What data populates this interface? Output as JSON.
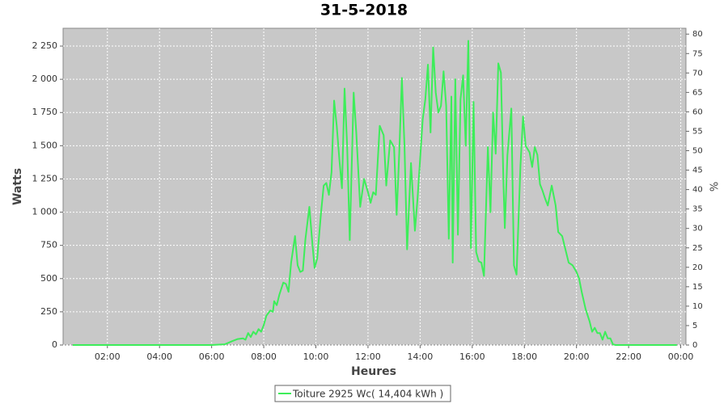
{
  "chart_data": {
    "type": "line",
    "title": "31-5-2018",
    "xlabel": "Heures",
    "ylabel": "Watts",
    "y2label": "%",
    "series": [
      {
        "name": "Toiture 2925 Wc( 14,404 kWh )",
        "color": "#3ded5a",
        "x": [
          0.67,
          6.0,
          6.5,
          6.8,
          7.0,
          7.2,
          7.3,
          7.4,
          7.5,
          7.6,
          7.7,
          7.8,
          7.9,
          8.0,
          8.1,
          8.25,
          8.35,
          8.4,
          8.5,
          8.6,
          8.75,
          8.85,
          8.95,
          9.05,
          9.2,
          9.3,
          9.4,
          9.5,
          9.6,
          9.75,
          9.85,
          9.95,
          10.05,
          10.2,
          10.3,
          10.4,
          10.5,
          10.6,
          10.7,
          10.8,
          10.9,
          11.0,
          11.1,
          11.2,
          11.3,
          11.45,
          11.55,
          11.7,
          11.85,
          12.0,
          12.1,
          12.2,
          12.3,
          12.45,
          12.6,
          12.7,
          12.85,
          13.0,
          13.1,
          13.2,
          13.3,
          13.4,
          13.5,
          13.65,
          13.8,
          13.9,
          14.0,
          14.1,
          14.2,
          14.3,
          14.4,
          14.5,
          14.6,
          14.7,
          14.8,
          14.9,
          15.0,
          15.1,
          15.2,
          15.25,
          15.35,
          15.45,
          15.55,
          15.65,
          15.75,
          15.85,
          15.95,
          16.05,
          16.15,
          16.25,
          16.35,
          16.45,
          16.6,
          16.7,
          16.8,
          16.9,
          17.0,
          17.1,
          17.2,
          17.25,
          17.35,
          17.5,
          17.6,
          17.7,
          17.85,
          17.95,
          18.05,
          18.2,
          18.3,
          18.4,
          18.5,
          18.6,
          18.7,
          18.8,
          18.9,
          19.05,
          19.2,
          19.3,
          19.45,
          19.6,
          19.7,
          19.85,
          20.0,
          20.1,
          20.2,
          20.35,
          20.5,
          20.6,
          20.7,
          20.8,
          20.9,
          21.0,
          21.1,
          21.2,
          21.3,
          21.4,
          21.5,
          23.85
        ],
        "values": [
          0,
          0,
          5,
          30,
          45,
          50,
          40,
          90,
          60,
          100,
          80,
          120,
          100,
          150,
          220,
          260,
          250,
          330,
          300,
          380,
          470,
          460,
          400,
          620,
          820,
          600,
          550,
          560,
          800,
          1040,
          800,
          580,
          650,
          1000,
          1200,
          1220,
          1130,
          1300,
          1840,
          1650,
          1400,
          1180,
          1930,
          1500,
          790,
          1900,
          1600,
          1040,
          1250,
          1150,
          1070,
          1150,
          1130,
          1650,
          1580,
          1200,
          1540,
          1490,
          980,
          1450,
          2010,
          1500,
          720,
          1370,
          860,
          1100,
          1400,
          1700,
          1850,
          2110,
          1600,
          2240,
          1900,
          1750,
          1800,
          2060,
          1800,
          800,
          1870,
          620,
          2000,
          830,
          1850,
          2030,
          1500,
          2290,
          730,
          1830,
          700,
          630,
          620,
          520,
          1490,
          1000,
          1750,
          1440,
          2120,
          2050,
          1200,
          880,
          1430,
          1780,
          600,
          530,
          1350,
          1720,
          1500,
          1450,
          1340,
          1490,
          1430,
          1210,
          1160,
          1100,
          1050,
          1200,
          1050,
          850,
          820,
          700,
          620,
          600,
          550,
          500,
          400,
          270,
          180,
          100,
          130,
          90,
          90,
          40,
          100,
          50,
          50,
          5,
          0,
          0
        ]
      }
    ],
    "xlim": [
      0.3,
      24.2
    ],
    "xticks": [
      {
        "value": 2,
        "label": "02:00"
      },
      {
        "value": 4,
        "label": "04:00"
      },
      {
        "value": 6,
        "label": "06:00"
      },
      {
        "value": 8,
        "label": "08:00"
      },
      {
        "value": 10,
        "label": "10:00"
      },
      {
        "value": 12,
        "label": "12:00"
      },
      {
        "value": 14,
        "label": "14:00"
      },
      {
        "value": 16,
        "label": "16:00"
      },
      {
        "value": 18,
        "label": "18:00"
      },
      {
        "value": 20,
        "label": "20:00"
      },
      {
        "value": 22,
        "label": "22:00"
      },
      {
        "value": 24,
        "label": "00:00"
      }
    ],
    "ylim": [
      0,
      2384
    ],
    "yticks": [
      0,
      250,
      500,
      750,
      {
        "value": 1000,
        "label": "1 000"
      },
      {
        "value": 1250,
        "label": "1 250"
      },
      {
        "value": 1500,
        "label": "1 500"
      },
      {
        "value": 1750,
        "label": "1 750"
      },
      {
        "value": 2000,
        "label": "2 000"
      },
      {
        "value": 2250,
        "label": "2 250"
      }
    ],
    "y2lim": [
      0,
      81.5
    ],
    "y2ticks": [
      0,
      5,
      10,
      15,
      20,
      25,
      30,
      35,
      40,
      45,
      50,
      55,
      60,
      65,
      70,
      75,
      80
    ],
    "grid": true,
    "legend": "bottom"
  }
}
